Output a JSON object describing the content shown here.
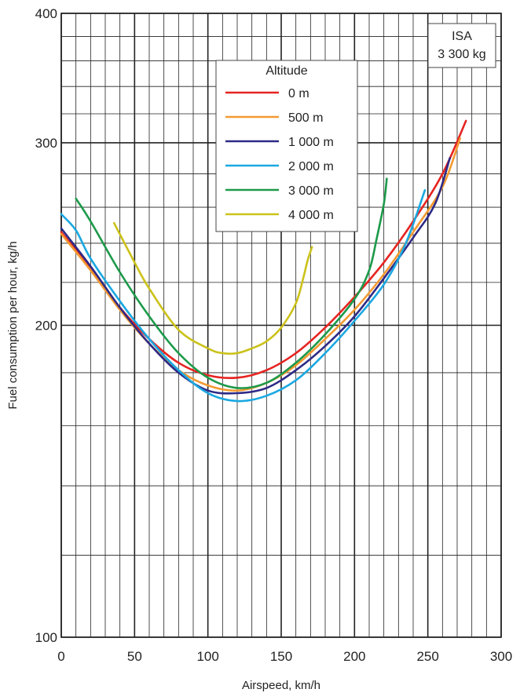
{
  "chart_data": {
    "type": "line",
    "xlabel": "Airspeed, km/h",
    "ylabel": "Fuel consumption per hour, kg/h",
    "xlim": [
      0,
      300
    ],
    "ylim": [
      100,
      400
    ],
    "y_scale": "log",
    "x_ticks": [
      0,
      50,
      100,
      150,
      200,
      250,
      300
    ],
    "y_tick_labels": [
      100,
      200,
      300,
      400
    ],
    "grid": true,
    "legend": {
      "title": "Altitude",
      "placement": "top-center"
    },
    "annotation": {
      "line1": "ISA",
      "line2": "3 300 kg",
      "placement": "top-right"
    },
    "series": [
      {
        "name": "0 m",
        "color": "#e52421",
        "points": [
          [
            0,
            246
          ],
          [
            20,
            227
          ],
          [
            40,
            208
          ],
          [
            60,
            194
          ],
          [
            80,
            184
          ],
          [
            100,
            179
          ],
          [
            120,
            178
          ],
          [
            140,
            181
          ],
          [
            160,
            188
          ],
          [
            180,
            199
          ],
          [
            200,
            213
          ],
          [
            220,
            230
          ],
          [
            240,
            252
          ],
          [
            260,
            280
          ],
          [
            276,
            315
          ]
        ]
      },
      {
        "name": "500 m",
        "color": "#f39a32",
        "points": [
          [
            0,
            245
          ],
          [
            20,
            226
          ],
          [
            40,
            207
          ],
          [
            60,
            192
          ],
          [
            80,
            181
          ],
          [
            100,
            175
          ],
          [
            120,
            173
          ],
          [
            140,
            176
          ],
          [
            160,
            183
          ],
          [
            180,
            194
          ],
          [
            200,
            207
          ],
          [
            220,
            224
          ],
          [
            240,
            246
          ],
          [
            260,
            272
          ],
          [
            272,
            303
          ]
        ]
      },
      {
        "name": "1 000 m",
        "color": "#2e2a86",
        "points": [
          [
            0,
            248
          ],
          [
            20,
            228
          ],
          [
            40,
            208
          ],
          [
            60,
            192
          ],
          [
            80,
            180
          ],
          [
            100,
            173
          ],
          [
            120,
            172
          ],
          [
            140,
            174
          ],
          [
            160,
            181
          ],
          [
            180,
            191
          ],
          [
            200,
            204
          ],
          [
            220,
            222
          ],
          [
            240,
            243
          ],
          [
            255,
            262
          ],
          [
            265,
            290
          ]
        ]
      },
      {
        "name": "2 000 m",
        "color": "#1aa8e1",
        "points": [
          [
            0,
            256
          ],
          [
            10,
            247
          ],
          [
            20,
            232
          ],
          [
            40,
            211
          ],
          [
            60,
            194
          ],
          [
            80,
            181
          ],
          [
            100,
            172
          ],
          [
            120,
            169
          ],
          [
            140,
            171
          ],
          [
            160,
            177
          ],
          [
            180,
            188
          ],
          [
            200,
            202
          ],
          [
            220,
            219
          ],
          [
            235,
            240
          ],
          [
            248,
            270
          ]
        ]
      },
      {
        "name": "3 000 m",
        "color": "#1d9a4a",
        "points": [
          [
            10,
            265
          ],
          [
            20,
            252
          ],
          [
            40,
            225
          ],
          [
            60,
            204
          ],
          [
            80,
            188
          ],
          [
            100,
            178
          ],
          [
            120,
            174
          ],
          [
            140,
            176
          ],
          [
            160,
            184
          ],
          [
            180,
            196
          ],
          [
            200,
            212
          ],
          [
            210,
            226
          ],
          [
            215,
            242
          ],
          [
            220,
            262
          ],
          [
            222,
            277
          ]
        ]
      },
      {
        "name": "4 000 m",
        "color": "#cbc21a",
        "points": [
          [
            36,
            251
          ],
          [
            50,
            230
          ],
          [
            60,
            217
          ],
          [
            80,
            198
          ],
          [
            100,
            190
          ],
          [
            110,
            188
          ],
          [
            120,
            188
          ],
          [
            130,
            190
          ],
          [
            140,
            193
          ],
          [
            150,
            199
          ],
          [
            160,
            210
          ],
          [
            165,
            222
          ],
          [
            168,
            231
          ],
          [
            171,
            238
          ]
        ]
      }
    ]
  }
}
